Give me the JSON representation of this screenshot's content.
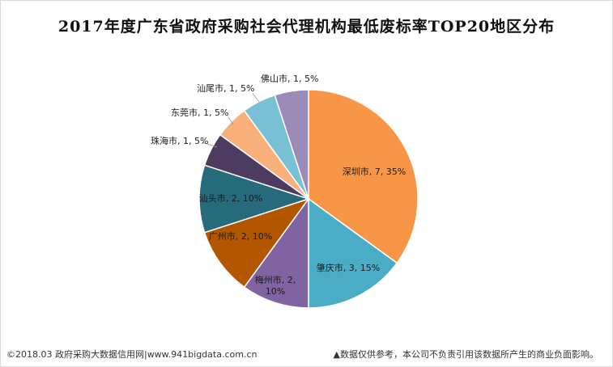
{
  "chart_data": {
    "type": "pie",
    "title": "2017年度广东省政府采购社会代理机构最低废标率TOP20地区分布",
    "slices": [
      {
        "label": "深圳市, 7, 35%",
        "name": "深圳市",
        "value": 7,
        "percent": 35,
        "color": "#F79646"
      },
      {
        "label": "肇庆市, 3, 15%",
        "name": "肇庆市",
        "value": 3,
        "percent": 15,
        "color": "#4BACC6"
      },
      {
        "label": "梅州市, 2, 10%",
        "name": "梅州市",
        "value": 2,
        "percent": 10,
        "color": "#8064A2"
      },
      {
        "label": "广州市, 2, 10%",
        "name": "广州市",
        "value": 2,
        "percent": 10,
        "color": "#B25600"
      },
      {
        "label": "汕头市, 2, 10%",
        "name": "汕头市",
        "value": 2,
        "percent": 10,
        "color": "#276A7C"
      },
      {
        "label": "珠海市, 1, 5%",
        "name": "珠海市",
        "value": 1,
        "percent": 5,
        "color": "#4D3B62"
      },
      {
        "label": "东莞市, 1, 5%",
        "name": "东莞市",
        "value": 1,
        "percent": 5,
        "color": "#FAB07A"
      },
      {
        "label": "汕尾市, 1, 5%",
        "name": "汕尾市",
        "value": 1,
        "percent": 5,
        "color": "#78C0D4"
      },
      {
        "label": "佛山市, 1, 5%",
        "name": "佛山市",
        "value": 1,
        "percent": 5,
        "color": "#9C8AB8"
      }
    ]
  },
  "footer": {
    "source": "©2018.03 政府采购大数据信用网|www.941bigdata.com.cn",
    "disclaimer": "▲数据仅供参考，本公司不负责引用该数据所产生的商业负面影响。"
  }
}
